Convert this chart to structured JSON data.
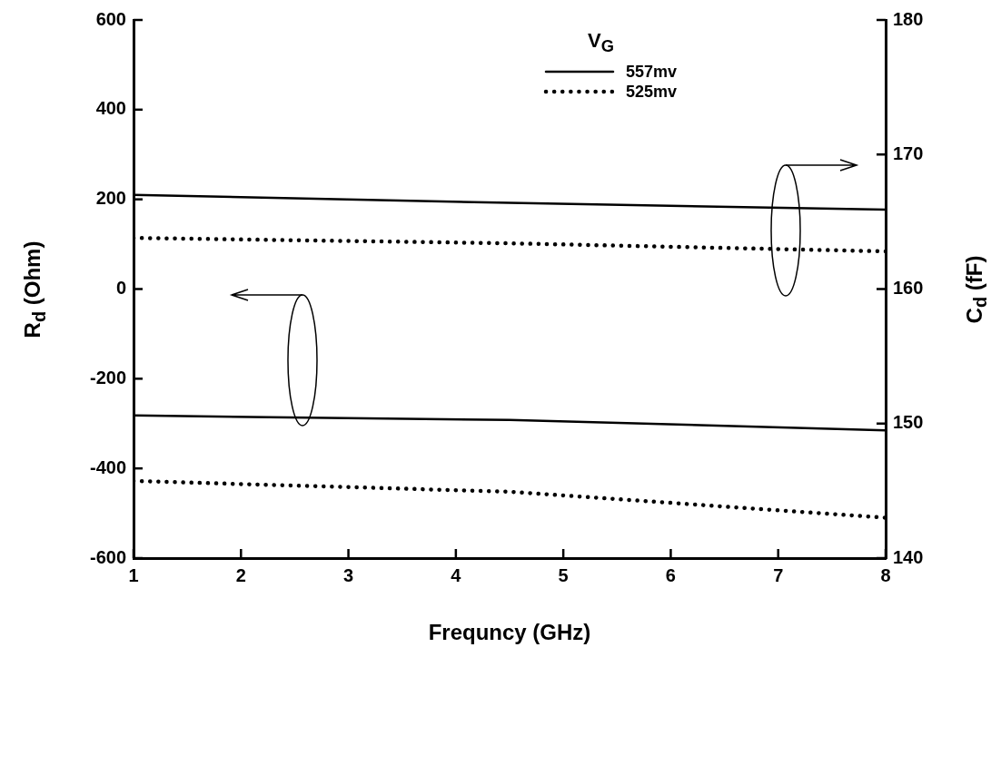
{
  "chart_data": {
    "type": "line",
    "xlabel": "Frequncy (GHz)",
    "ylabel": "R$_{d}$ (Ohm)",
    "y2label": "C$_{d}$ (fF)",
    "legend_title": "V$_{G}$",
    "legend": "top",
    "grid": false,
    "marker": "none",
    "x": [
      1,
      4.5,
      8
    ],
    "series": [
      {
        "name": "557mv",
        "color": "#000000",
        "line_style": "solid",
        "values": [
          -282,
          -292,
          -315
        ]
      },
      {
        "name": "525mv",
        "color": "#000000",
        "line_style": "dotted",
        "values": [
          -428,
          -452,
          -510
        ]
      },
      {
        "color": "#000000",
        "line_style": "solid",
        "axis": "y2",
        "values": [
          167.0,
          166.4,
          165.9
        ]
      },
      {
        "color": "#000000",
        "line_style": "dotted",
        "axis": "y2",
        "values": [
          163.8,
          163.4,
          162.8
        ]
      }
    ],
    "xlim": [
      1,
      8
    ],
    "xticks": [
      1,
      2,
      3,
      4,
      5,
      6,
      7,
      8
    ],
    "ylim": [
      -600,
      600
    ],
    "yticks": [
      -600,
      -400,
      -200,
      0,
      200,
      400,
      600
    ],
    "y2lim": [
      140,
      180
    ],
    "y2ticks": [
      140,
      150,
      160,
      170,
      180
    ]
  }
}
